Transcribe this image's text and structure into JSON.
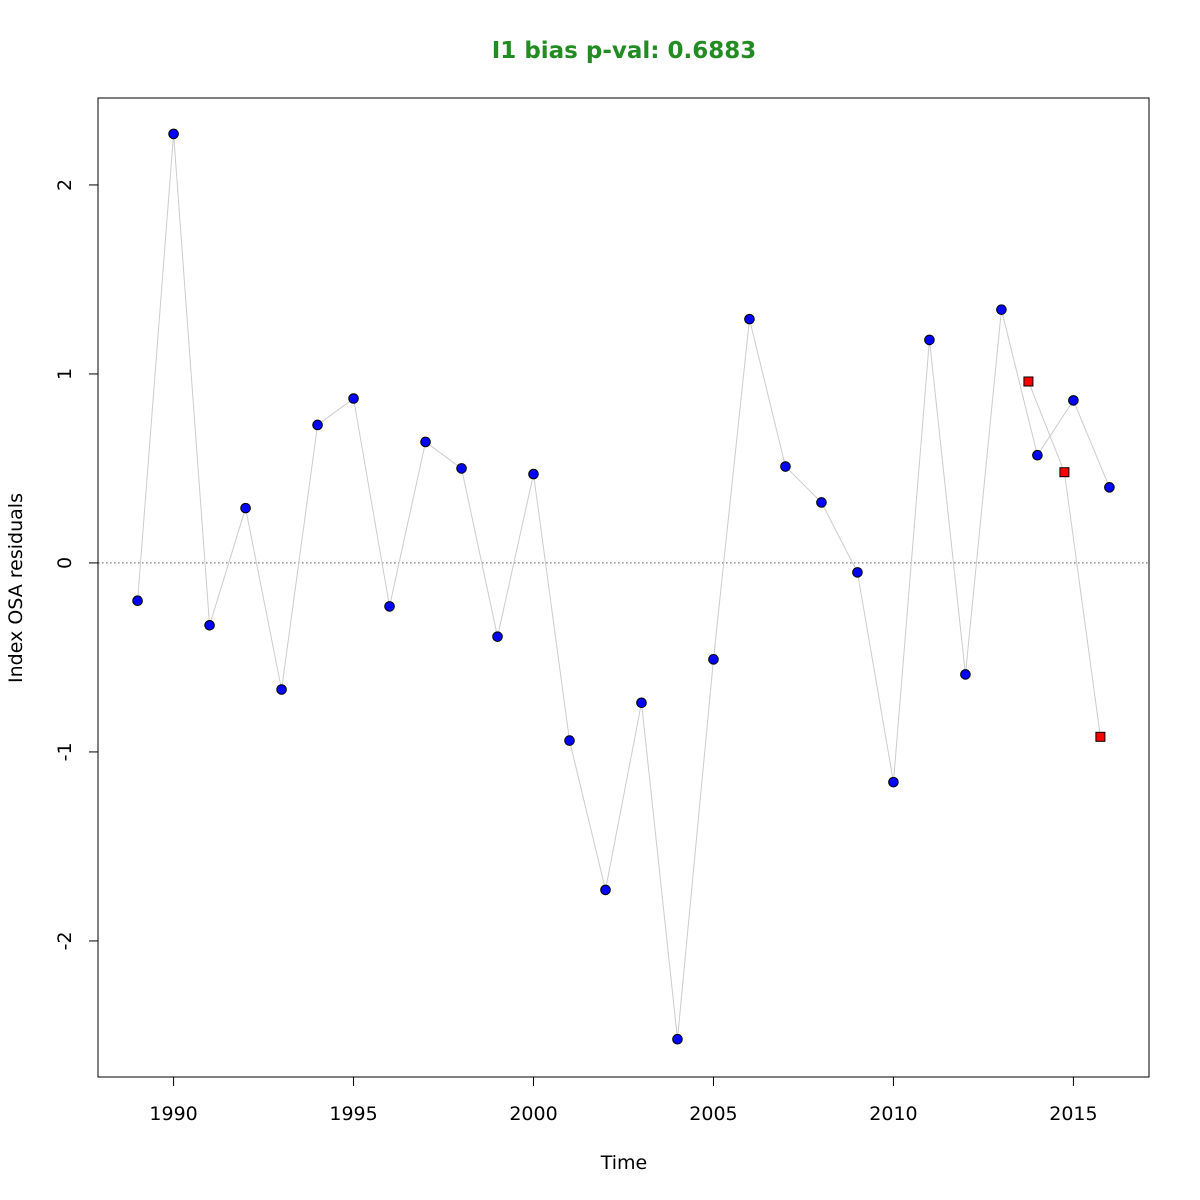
{
  "chart_data": {
    "type": "scatter",
    "title": "I1 bias p-val: 0.6883",
    "title_color": "#228b22",
    "xlabel": "Time",
    "ylabel": "Index OSA residuals",
    "xlim": [
      1987.9,
      2017.1
    ],
    "ylim": [
      -2.72,
      2.46
    ],
    "x_ticks": [
      1990,
      1995,
      2000,
      2005,
      2010,
      2015
    ],
    "y_ticks": [
      -2,
      -1,
      0,
      1,
      2
    ],
    "reference_line": {
      "y": 0,
      "style": "dotted",
      "color": "#555555"
    },
    "series": [
      {
        "marker": "circle",
        "fill": "#0000ff",
        "line_color": "#cccccc",
        "points": [
          {
            "x": 1989,
            "y": -0.2
          },
          {
            "x": 1990,
            "y": 2.27
          },
          {
            "x": 1991,
            "y": -0.33
          },
          {
            "x": 1992,
            "y": 0.29
          },
          {
            "x": 1993,
            "y": -0.67
          },
          {
            "x": 1994,
            "y": 0.73
          },
          {
            "x": 1995,
            "y": 0.87
          },
          {
            "x": 1996,
            "y": -0.23
          },
          {
            "x": 1997,
            "y": 0.64
          },
          {
            "x": 1998,
            "y": 0.5
          },
          {
            "x": 1999,
            "y": -0.39
          },
          {
            "x": 2000,
            "y": 0.47
          },
          {
            "x": 2001,
            "y": -0.94
          },
          {
            "x": 2002,
            "y": -1.73
          },
          {
            "x": 2003,
            "y": -0.74
          },
          {
            "x": 2004,
            "y": -2.52
          },
          {
            "x": 2005,
            "y": -0.51
          },
          {
            "x": 2006,
            "y": 1.29
          },
          {
            "x": 2007,
            "y": 0.51
          },
          {
            "x": 2008,
            "y": 0.32
          },
          {
            "x": 2009,
            "y": -0.05
          },
          {
            "x": 2010,
            "y": -1.16
          },
          {
            "x": 2011,
            "y": 1.18
          },
          {
            "x": 2012,
            "y": -0.59
          },
          {
            "x": 2013,
            "y": 1.34
          },
          {
            "x": 2014,
            "y": 0.57
          },
          {
            "x": 2015,
            "y": 0.86
          },
          {
            "x": 2016,
            "y": 0.4
          }
        ]
      },
      {
        "marker": "square",
        "fill": "#ff0000",
        "line_color": "#cccccc",
        "points": [
          {
            "x": 2013.75,
            "y": 0.96
          },
          {
            "x": 2014.75,
            "y": 0.48
          },
          {
            "x": 2015.75,
            "y": -0.92
          }
        ]
      }
    ]
  }
}
